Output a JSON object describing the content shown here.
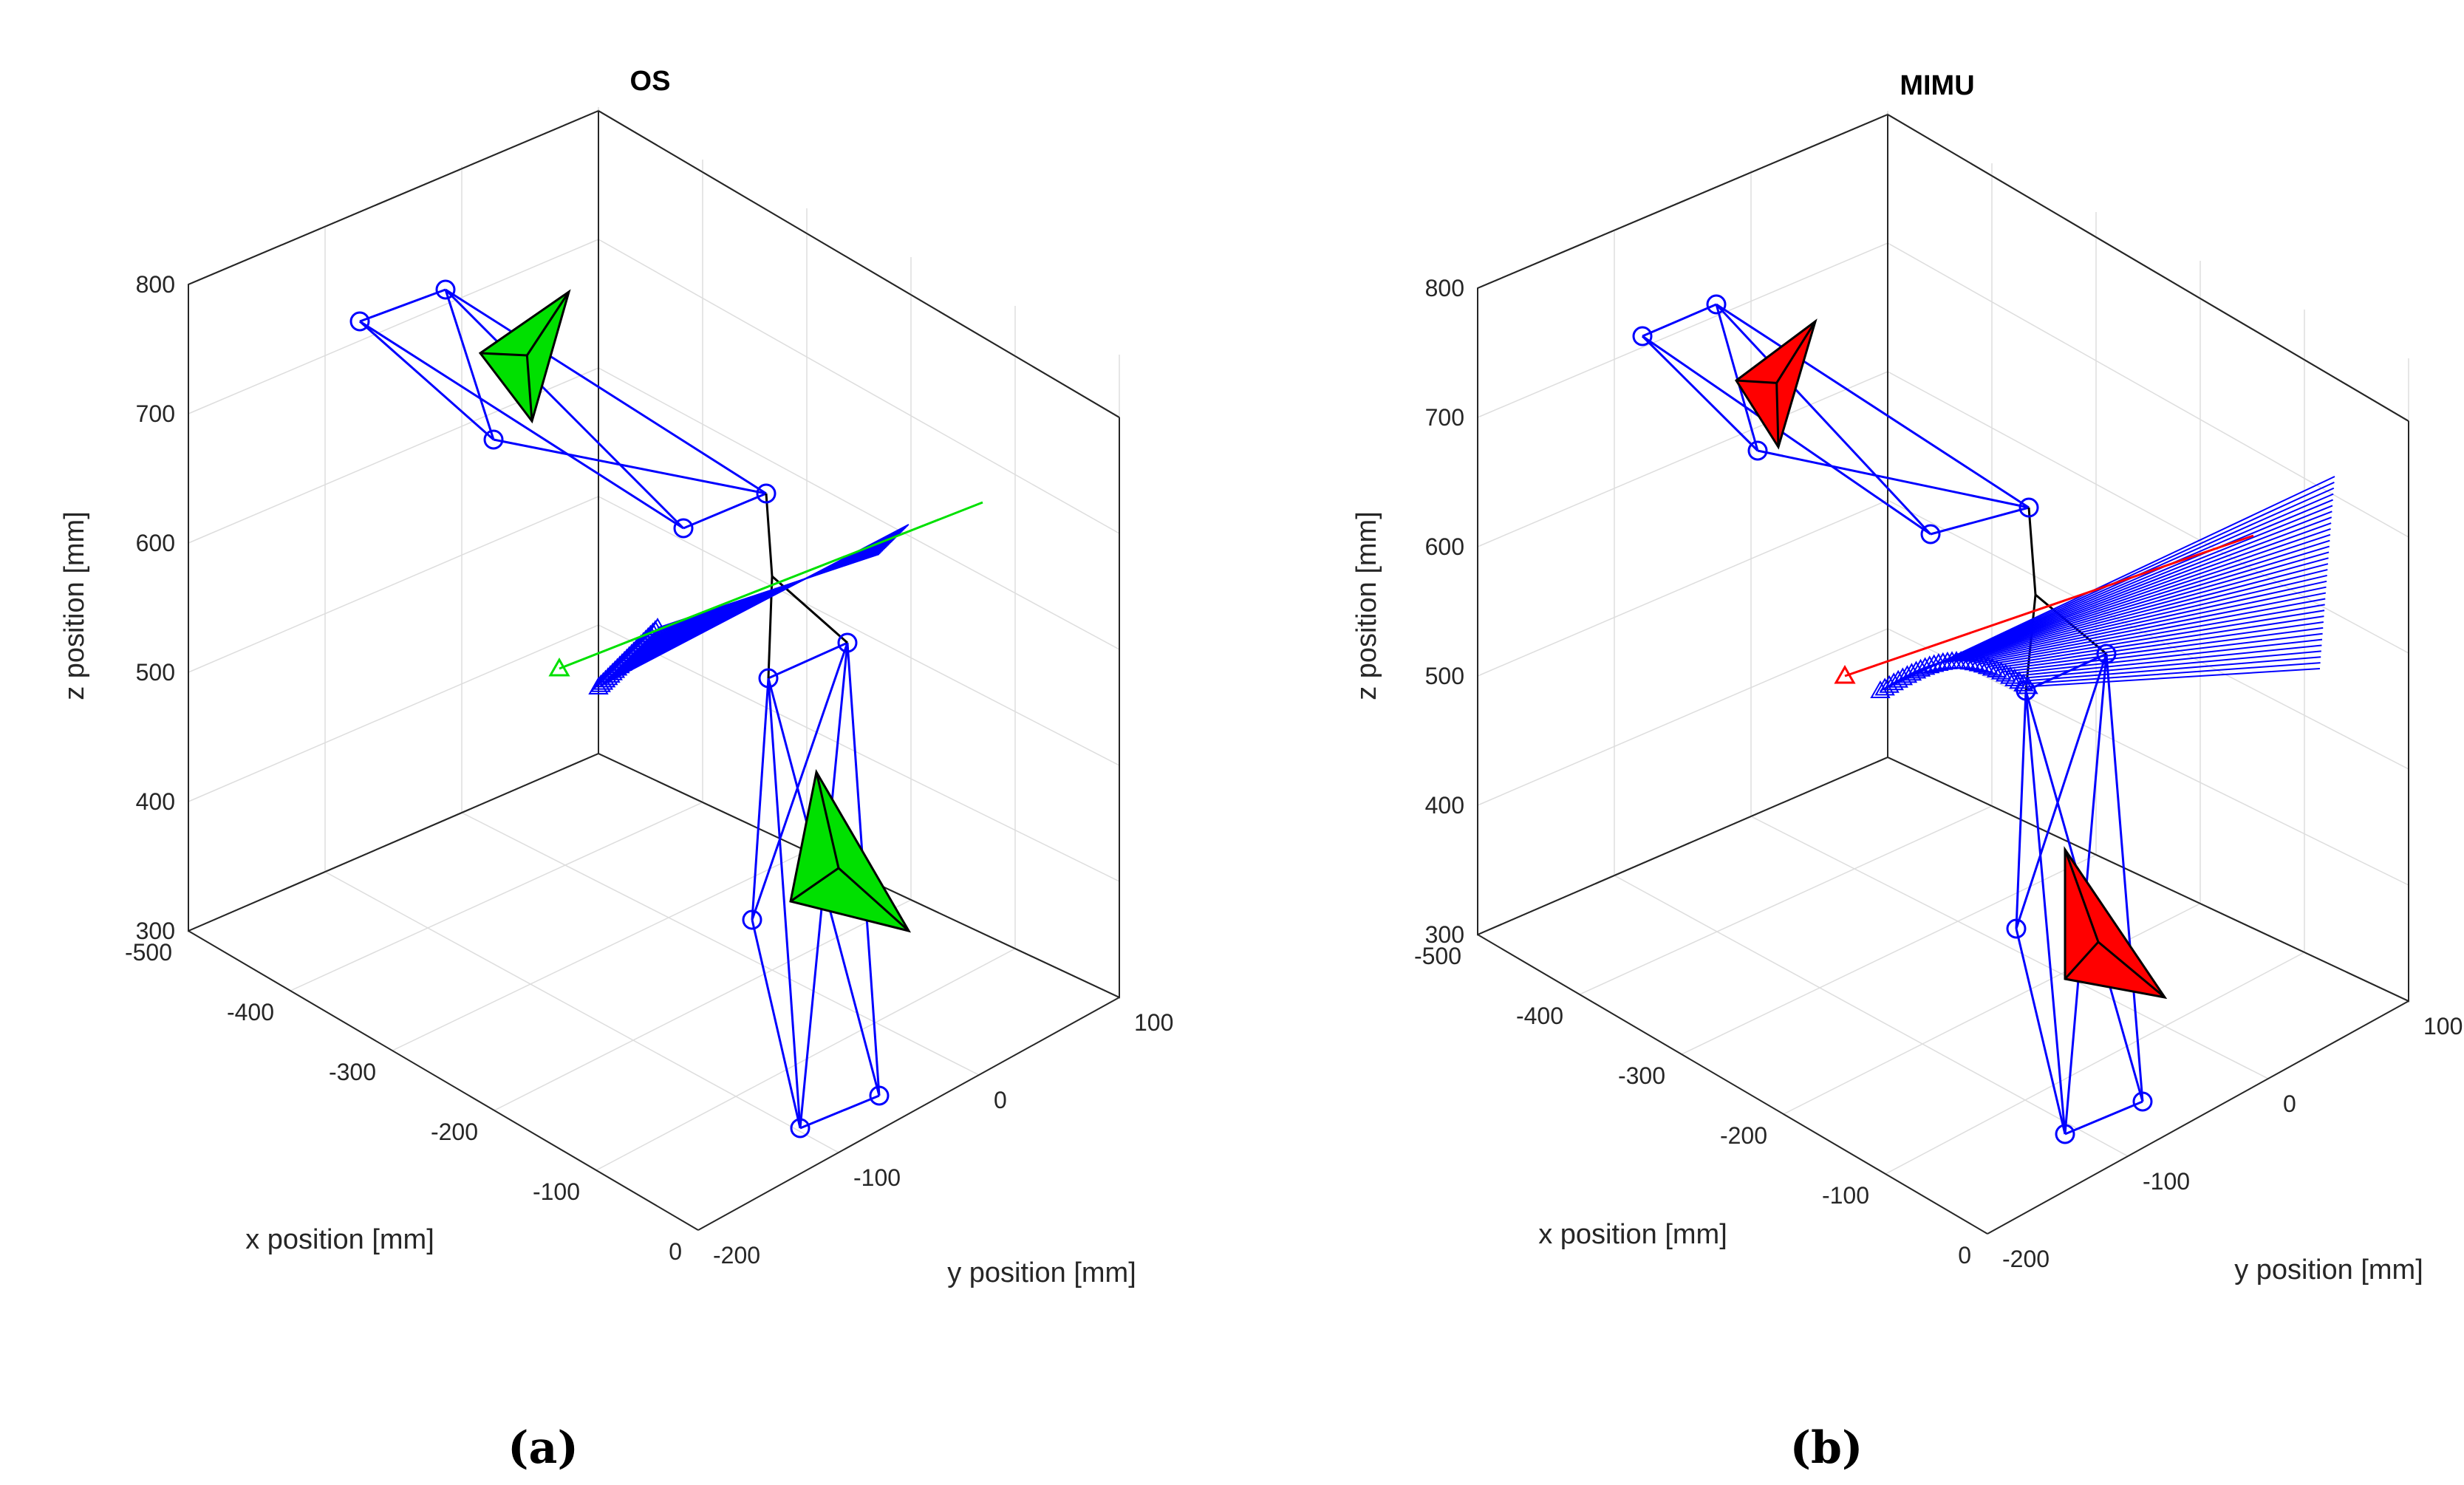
{
  "chart_data": [
    {
      "type": "3d-line",
      "panel_label": "(a)",
      "title": "OS",
      "xlabel": "x position [mm]",
      "ylabel": "y position [mm]",
      "zlabel": "z position [mm]",
      "xlim": [
        -500,
        0
      ],
      "ylim": [
        -200,
        100
      ],
      "zlim": [
        300,
        800
      ],
      "x_ticks": [
        "-500",
        "-400",
        "-300",
        "-200",
        "-100",
        "0"
      ],
      "y_ticks": [
        "-200",
        "-100",
        "0",
        "100"
      ],
      "z_ticks": [
        "300",
        "400",
        "500",
        "600",
        "700",
        "800"
      ],
      "grid": true,
      "accent_color": "#00e000",
      "skeleton_color": "#0000ff",
      "markers": "circle",
      "arrows_marker": "triangle"
    },
    {
      "type": "3d-line",
      "panel_label": "(b)",
      "title": "MIMU",
      "xlabel": "x position [mm]",
      "ylabel": "y position [mm]",
      "zlabel": "z position [mm]",
      "xlim": [
        -500,
        0
      ],
      "ylim": [
        -200,
        100
      ],
      "zlim": [
        300,
        800
      ],
      "x_ticks": [
        "-500",
        "-400",
        "-300",
        "-200",
        "-100",
        "0"
      ],
      "y_ticks": [
        "-200",
        "-100",
        "0",
        "100"
      ],
      "z_ticks": [
        "300",
        "400",
        "500",
        "600",
        "700",
        "800"
      ],
      "grid": true,
      "accent_color": "#ff0000",
      "skeleton_color": "#0000ff",
      "markers": "circle",
      "arrows_marker": "triangle"
    }
  ]
}
